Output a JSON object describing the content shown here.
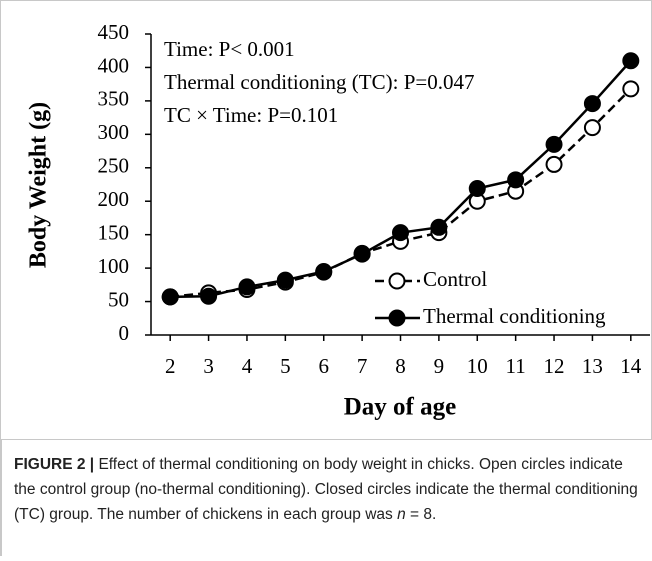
{
  "chart_data": {
    "type": "line",
    "ylabel": "Body Weight (g)",
    "xlabel": "Day of age",
    "annotations": [
      "Time: P< 0.001",
      "Thermal conditioning (TC): P=0.047",
      "TC × Time: P=0.101"
    ],
    "x": [
      2,
      3,
      4,
      5,
      6,
      7,
      8,
      9,
      10,
      11,
      12,
      13,
      14
    ],
    "series": [
      {
        "name": "Control",
        "color": "#000000",
        "dashed": true,
        "filled": false,
        "values": [
          57,
          63,
          68,
          79,
          94,
          122,
          140,
          153,
          200,
          215,
          255,
          310,
          368
        ]
      },
      {
        "name": "Thermal conditioning",
        "color": "#000000",
        "dashed": false,
        "filled": true,
        "values": [
          57,
          58,
          72,
          82,
          95,
          121,
          153,
          161,
          219,
          232,
          285,
          346,
          410
        ]
      }
    ],
    "xlim": [
      1.5,
      14.5
    ],
    "xticks": [
      2,
      3,
      4,
      5,
      6,
      7,
      8,
      9,
      10,
      11,
      12,
      13,
      14
    ],
    "ylim": [
      0,
      450
    ],
    "yticks": [
      0,
      50,
      100,
      150,
      200,
      250,
      300,
      350,
      400,
      450
    ],
    "grid": false,
    "legend": "lower-center"
  },
  "caption": {
    "label": "FIGURE 2 |",
    "text": " Effect of thermal conditioning on body weight in chicks. Open circles indicate the control group (no-thermal conditioning). Closed circles indicate the thermal conditioning (TC) group. The number of chickens in each group was ",
    "italic": "n",
    "end": " = 8."
  }
}
